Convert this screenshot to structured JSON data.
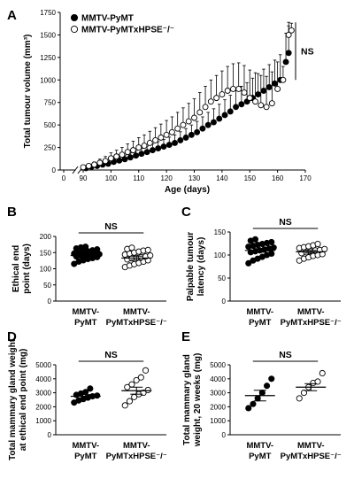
{
  "chart_data": [
    {
      "panel": "A",
      "type": "line",
      "xlabel": "Age (days)",
      "ylabel": "Total tumour volume (mm³)",
      "xlim": [
        0,
        170
      ],
      "ylim": [
        0,
        1750
      ],
      "x_ticks": [
        0,
        90,
        100,
        110,
        120,
        130,
        140,
        150,
        160,
        170
      ],
      "y_ticks": [
        0,
        250,
        500,
        750,
        1000,
        1250,
        1500,
        1750
      ],
      "axis_break": true,
      "legend_position": "top-left",
      "ns_label": "NS",
      "series": [
        {
          "name": "MMTV-PyMT",
          "marker": "filled",
          "x": [
            91,
            93,
            95,
            97,
            99,
            101,
            103,
            105,
            107,
            109,
            111,
            113,
            115,
            117,
            119,
            121,
            123,
            125,
            127,
            129,
            131,
            133,
            135,
            137,
            139,
            141,
            143,
            145,
            147,
            149,
            151,
            153,
            155,
            157,
            159,
            161,
            163,
            164
          ],
          "y": [
            20,
            35,
            45,
            60,
            70,
            90,
            105,
            120,
            140,
            160,
            180,
            200,
            220,
            240,
            260,
            280,
            300,
            330,
            360,
            390,
            420,
            460,
            500,
            530,
            570,
            610,
            650,
            700,
            730,
            760,
            800,
            840,
            880,
            920,
            960,
            1000,
            1200,
            1300
          ],
          "err": [
            10,
            15,
            20,
            25,
            30,
            35,
            40,
            45,
            50,
            55,
            60,
            65,
            70,
            75,
            80,
            85,
            90,
            95,
            100,
            110,
            120,
            130,
            140,
            150,
            160,
            170,
            180,
            190,
            200,
            210,
            220,
            230,
            240,
            250,
            260,
            280,
            320,
            340
          ]
        },
        {
          "name": "MMTV-PyMTxHPSE-/-",
          "marker": "open",
          "x": [
            90,
            92,
            94,
            96,
            98,
            100,
            102,
            104,
            106,
            108,
            110,
            112,
            114,
            116,
            118,
            120,
            122,
            124,
            126,
            128,
            130,
            132,
            134,
            136,
            138,
            140,
            142,
            144,
            146,
            148,
            150,
            152,
            154,
            156,
            158,
            160,
            162,
            164,
            165
          ],
          "y": [
            30,
            45,
            60,
            80,
            100,
            130,
            150,
            170,
            200,
            220,
            250,
            270,
            300,
            330,
            360,
            390,
            420,
            460,
            500,
            540,
            580,
            640,
            700,
            760,
            800,
            840,
            880,
            900,
            900,
            860,
            800,
            760,
            720,
            700,
            740,
            900,
            1000,
            1500,
            1550
          ],
          "err": [
            15,
            20,
            30,
            40,
            50,
            60,
            70,
            80,
            90,
            100,
            110,
            120,
            130,
            140,
            150,
            160,
            170,
            180,
            190,
            200,
            210,
            220,
            230,
            240,
            250,
            260,
            270,
            280,
            290,
            300,
            310,
            320,
            330,
            340,
            350,
            300,
            150,
            100,
            80
          ]
        }
      ]
    },
    {
      "panel": "B",
      "type": "scatter",
      "ylabel": "Ethical end point (days)",
      "ylim": [
        0,
        200
      ],
      "y_ticks": [
        0,
        50,
        100,
        150,
        200
      ],
      "ns_label": "NS",
      "categories": [
        "MMTV-\nPyMT",
        "MMTV-\nPyMTxHPSE-/-"
      ],
      "series": [
        {
          "name": "MMTV-PyMT",
          "marker": "filled",
          "mean": 141,
          "sem": 5,
          "values": [
            115,
            122,
            126,
            130,
            133,
            136,
            138,
            140,
            141,
            142,
            143,
            145,
            147,
            149,
            151,
            154,
            157,
            160,
            163,
            166,
            168
          ]
        },
        {
          "name": "MMTV-PyMTxHPSE-/-",
          "marker": "open",
          "mean": 133,
          "sem": 6,
          "values": [
            105,
            110,
            114,
            118,
            122,
            126,
            129,
            132,
            134,
            136,
            138,
            141,
            144,
            147,
            150,
            153,
            156,
            158,
            161,
            165
          ]
        }
      ]
    },
    {
      "panel": "C",
      "type": "scatter",
      "ylabel": "Palpable tumour latency (days)",
      "ylim": [
        0,
        150
      ],
      "y_ticks": [
        0,
        50,
        100,
        150
      ],
      "ns_label": "NS",
      "categories": [
        "MMTV-\nPyMT",
        "MMTV-\nPyMTxHPSE-/-"
      ],
      "series": [
        {
          "name": "MMTV-PyMT",
          "marker": "filled",
          "mean": 110,
          "sem": 4,
          "values": [
            82,
            88,
            92,
            96,
            100,
            103,
            106,
            108,
            110,
            112,
            114,
            116,
            118,
            120,
            122,
            124,
            126,
            128,
            131,
            134
          ]
        },
        {
          "name": "MMTV-PyMTxHPSE-/-",
          "marker": "open",
          "mean": 107,
          "sem": 3,
          "values": [
            88,
            92,
            95,
            98,
            100,
            102,
            104,
            106,
            108,
            110,
            111,
            113,
            115,
            117,
            119,
            121,
            124
          ]
        }
      ]
    },
    {
      "panel": "D",
      "type": "scatter",
      "ylabel": "Total mammary gland weight at ethical end point (mg)",
      "ylim": [
        0,
        5000
      ],
      "y_ticks": [
        0,
        1000,
        2000,
        3000,
        4000,
        5000
      ],
      "ns_label": "NS",
      "categories": [
        "MMTV-\nPyMT",
        "MMTV-\nPyMTxHPSE-/-"
      ],
      "series": [
        {
          "name": "MMTV-PyMT",
          "marker": "filled",
          "mean": 2750,
          "sem": 120,
          "values": [
            2300,
            2450,
            2550,
            2650,
            2750,
            2800,
            2850,
            2950,
            3050,
            3300
          ]
        },
        {
          "name": "MMTV-PyMTxHPSE-/-",
          "marker": "open",
          "mean": 3150,
          "sem": 250,
          "values": [
            2100,
            2400,
            2700,
            2900,
            3000,
            3200,
            3400,
            3600,
            3900,
            4100,
            4600
          ]
        }
      ]
    },
    {
      "panel": "E",
      "type": "scatter",
      "ylabel": "Total mammary gland weight, 20 weeks (mg)",
      "ylim": [
        0,
        5000
      ],
      "y_ticks": [
        0,
        1000,
        2000,
        3000,
        4000,
        5000
      ],
      "ns_label": "NS",
      "categories": [
        "MMTV-\nPyMT",
        "MMTV-\nPyMTxHPSE-/-"
      ],
      "series": [
        {
          "name": "MMTV-PyMT",
          "marker": "filled",
          "mean": 2800,
          "sem": 380,
          "values": [
            1900,
            2200,
            2600,
            3000,
            3500,
            4000
          ]
        },
        {
          "name": "MMTV-PyMTxHPSE-/-",
          "marker": "open",
          "mean": 3400,
          "sem": 250,
          "values": [
            2600,
            3000,
            3400,
            3700,
            3800,
            4400
          ]
        }
      ]
    }
  ]
}
